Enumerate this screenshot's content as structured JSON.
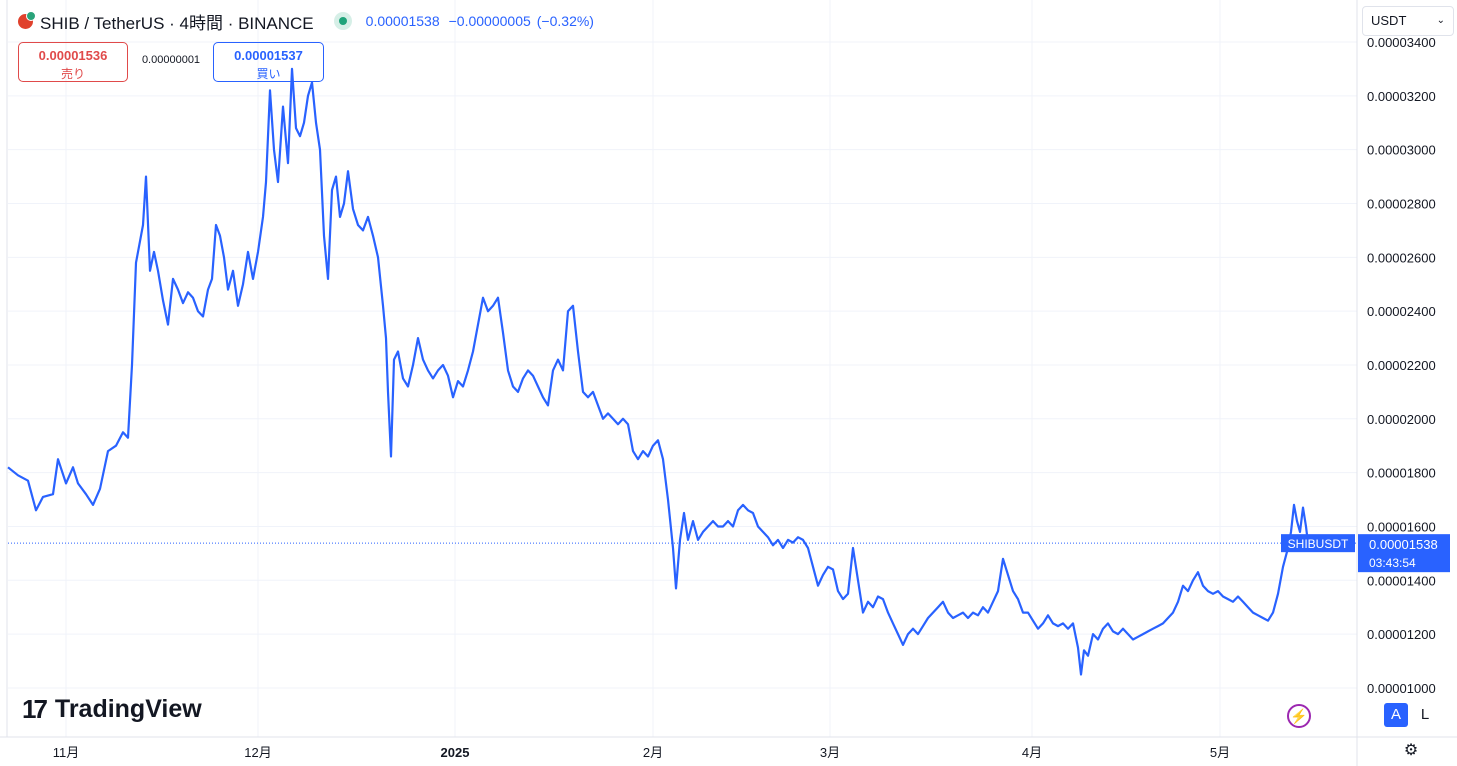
{
  "header": {
    "title": "SHIB / TetherUS · 4時間 · BINANCE",
    "last": "0.00001538",
    "change": "−0.00000005",
    "change_pct": "(−0.32%)"
  },
  "trade": {
    "sell_price": "0.00001536",
    "sell_label": "売り",
    "spread": "0.00000001",
    "buy_price": "0.00001537",
    "buy_label": "買い"
  },
  "currency_select": "USDT",
  "tag": {
    "symbol": "SHIBUSDT",
    "price": "0.00001538",
    "countdown": "03:43:54"
  },
  "brand": "TradingView",
  "controls": {
    "auto": "A",
    "log": "L"
  },
  "icons": {
    "settings": "gear-icon",
    "lightning": "lightning-icon",
    "logo": "shib-logo-icon"
  },
  "colors": {
    "line": "#2962ff",
    "tag": "#2962ff",
    "grid": "#f0f3fa",
    "sell": "#e04a4a",
    "buy": "#2962ff"
  },
  "chart_data": {
    "type": "line",
    "x_labels": [
      "11月",
      "12月",
      "2025",
      "2月",
      "3月",
      "4月",
      "5月"
    ],
    "y_ticks": [
      "0.00001000",
      "0.00001200",
      "0.00001400",
      "0.00001600",
      "0.00001800",
      "0.00002000",
      "0.00002200",
      "0.00002400",
      "0.00002600",
      "0.00002800",
      "0.00003000",
      "0.00003200",
      "0.00003400"
    ],
    "ylim": [
      9.85e-06,
      3.4e-05
    ],
    "grid": true,
    "last_value": 1.538e-05,
    "series": [
      {
        "values": [
          [
            0,
            1.82
          ],
          [
            10,
            1.79
          ],
          [
            20,
            1.77
          ],
          [
            28,
            1.66
          ],
          [
            35,
            1.71
          ],
          [
            45,
            1.72
          ],
          [
            50,
            1.85
          ],
          [
            58,
            1.76
          ],
          [
            65,
            1.82
          ],
          [
            70,
            1.76
          ],
          [
            78,
            1.72
          ],
          [
            85,
            1.68
          ],
          [
            92,
            1.74
          ],
          [
            100,
            1.88
          ],
          [
            108,
            1.9
          ],
          [
            115,
            1.95
          ],
          [
            120,
            1.93
          ],
          [
            124,
            2.2
          ],
          [
            128,
            2.58
          ],
          [
            132,
            2.66
          ],
          [
            135,
            2.72
          ],
          [
            138,
            2.9
          ],
          [
            142,
            2.55
          ],
          [
            146,
            2.62
          ],
          [
            150,
            2.55
          ],
          [
            155,
            2.44
          ],
          [
            160,
            2.35
          ],
          [
            165,
            2.52
          ],
          [
            170,
            2.48
          ],
          [
            175,
            2.43
          ],
          [
            180,
            2.47
          ],
          [
            185,
            2.45
          ],
          [
            190,
            2.4
          ],
          [
            195,
            2.38
          ],
          [
            200,
            2.48
          ],
          [
            204,
            2.52
          ],
          [
            208,
            2.72
          ],
          [
            212,
            2.68
          ],
          [
            216,
            2.6
          ],
          [
            220,
            2.48
          ],
          [
            225,
            2.55
          ],
          [
            230,
            2.42
          ],
          [
            235,
            2.5
          ],
          [
            240,
            2.62
          ],
          [
            245,
            2.52
          ],
          [
            250,
            2.62
          ],
          [
            255,
            2.75
          ],
          [
            258,
            2.88
          ],
          [
            262,
            3.22
          ],
          [
            266,
            3.0
          ],
          [
            270,
            2.88
          ],
          [
            275,
            3.16
          ],
          [
            280,
            2.95
          ],
          [
            284,
            3.3
          ],
          [
            288,
            3.08
          ],
          [
            292,
            3.05
          ],
          [
            296,
            3.1
          ],
          [
            300,
            3.2
          ],
          [
            304,
            3.25
          ],
          [
            308,
            3.1
          ],
          [
            312,
            3.0
          ],
          [
            316,
            2.68
          ],
          [
            320,
            2.52
          ],
          [
            324,
            2.85
          ],
          [
            328,
            2.9
          ],
          [
            332,
            2.75
          ],
          [
            336,
            2.8
          ],
          [
            340,
            2.92
          ],
          [
            345,
            2.78
          ],
          [
            350,
            2.72
          ],
          [
            355,
            2.7
          ],
          [
            360,
            2.75
          ],
          [
            365,
            2.68
          ],
          [
            370,
            2.6
          ],
          [
            375,
            2.42
          ],
          [
            378,
            2.3
          ],
          [
            380,
            2.1
          ],
          [
            383,
            1.86
          ],
          [
            386,
            2.22
          ],
          [
            390,
            2.25
          ],
          [
            395,
            2.15
          ],
          [
            400,
            2.12
          ],
          [
            405,
            2.2
          ],
          [
            410,
            2.3
          ],
          [
            415,
            2.22
          ],
          [
            420,
            2.18
          ],
          [
            425,
            2.15
          ],
          [
            430,
            2.18
          ],
          [
            435,
            2.2
          ],
          [
            440,
            2.16
          ],
          [
            445,
            2.08
          ],
          [
            450,
            2.14
          ],
          [
            455,
            2.12
          ],
          [
            460,
            2.18
          ],
          [
            465,
            2.25
          ],
          [
            470,
            2.35
          ],
          [
            475,
            2.45
          ],
          [
            480,
            2.4
          ],
          [
            485,
            2.42
          ],
          [
            490,
            2.45
          ],
          [
            495,
            2.32
          ],
          [
            500,
            2.18
          ],
          [
            505,
            2.12
          ],
          [
            510,
            2.1
          ],
          [
            515,
            2.15
          ],
          [
            520,
            2.18
          ],
          [
            525,
            2.16
          ],
          [
            530,
            2.12
          ],
          [
            535,
            2.08
          ],
          [
            540,
            2.05
          ],
          [
            545,
            2.18
          ],
          [
            550,
            2.22
          ],
          [
            555,
            2.18
          ],
          [
            560,
            2.4
          ],
          [
            565,
            2.42
          ],
          [
            570,
            2.25
          ],
          [
            575,
            2.1
          ],
          [
            580,
            2.08
          ],
          [
            585,
            2.1
          ],
          [
            590,
            2.05
          ],
          [
            595,
            2.0
          ],
          [
            600,
            2.02
          ],
          [
            605,
            2.0
          ],
          [
            610,
            1.98
          ],
          [
            615,
            2.0
          ],
          [
            620,
            1.98
          ],
          [
            625,
            1.88
          ],
          [
            630,
            1.85
          ],
          [
            635,
            1.88
          ],
          [
            640,
            1.86
          ],
          [
            645,
            1.9
          ],
          [
            650,
            1.92
          ],
          [
            655,
            1.85
          ],
          [
            660,
            1.7
          ],
          [
            665,
            1.52
          ],
          [
            668,
            1.37
          ],
          [
            672,
            1.55
          ],
          [
            676,
            1.65
          ],
          [
            680,
            1.55
          ],
          [
            685,
            1.62
          ],
          [
            690,
            1.55
          ],
          [
            695,
            1.58
          ],
          [
            700,
            1.6
          ],
          [
            705,
            1.62
          ],
          [
            710,
            1.6
          ],
          [
            715,
            1.6
          ],
          [
            720,
            1.62
          ],
          [
            725,
            1.6
          ],
          [
            730,
            1.66
          ],
          [
            735,
            1.68
          ],
          [
            740,
            1.66
          ],
          [
            745,
            1.65
          ],
          [
            750,
            1.6
          ],
          [
            755,
            1.58
          ],
          [
            760,
            1.56
          ],
          [
            765,
            1.53
          ],
          [
            770,
            1.55
          ],
          [
            775,
            1.52
          ],
          [
            780,
            1.55
          ],
          [
            785,
            1.54
          ],
          [
            790,
            1.56
          ],
          [
            795,
            1.55
          ],
          [
            800,
            1.52
          ],
          [
            805,
            1.45
          ],
          [
            810,
            1.38
          ],
          [
            815,
            1.42
          ],
          [
            820,
            1.45
          ],
          [
            825,
            1.44
          ],
          [
            830,
            1.36
          ],
          [
            835,
            1.33
          ],
          [
            840,
            1.35
          ],
          [
            845,
            1.52
          ],
          [
            850,
            1.4
          ],
          [
            855,
            1.28
          ],
          [
            860,
            1.32
          ],
          [
            865,
            1.3
          ],
          [
            870,
            1.34
          ],
          [
            875,
            1.33
          ],
          [
            880,
            1.28
          ],
          [
            885,
            1.24
          ],
          [
            890,
            1.2
          ],
          [
            895,
            1.16
          ],
          [
            900,
            1.2
          ],
          [
            905,
            1.22
          ],
          [
            910,
            1.2
          ],
          [
            915,
            1.23
          ],
          [
            920,
            1.26
          ],
          [
            925,
            1.28
          ],
          [
            930,
            1.3
          ],
          [
            935,
            1.32
          ],
          [
            940,
            1.28
          ],
          [
            945,
            1.26
          ],
          [
            950,
            1.27
          ],
          [
            955,
            1.28
          ],
          [
            960,
            1.26
          ],
          [
            965,
            1.28
          ],
          [
            970,
            1.27
          ],
          [
            975,
            1.3
          ],
          [
            980,
            1.28
          ],
          [
            985,
            1.32
          ],
          [
            990,
            1.36
          ],
          [
            995,
            1.48
          ],
          [
            1000,
            1.42
          ],
          [
            1005,
            1.36
          ],
          [
            1010,
            1.33
          ],
          [
            1015,
            1.28
          ],
          [
            1020,
            1.28
          ],
          [
            1025,
            1.25
          ],
          [
            1030,
            1.22
          ],
          [
            1035,
            1.24
          ],
          [
            1040,
            1.27
          ],
          [
            1045,
            1.24
          ],
          [
            1050,
            1.23
          ],
          [
            1055,
            1.24
          ],
          [
            1060,
            1.22
          ],
          [
            1065,
            1.24
          ],
          [
            1070,
            1.15
          ],
          [
            1073,
            1.05
          ],
          [
            1076,
            1.14
          ],
          [
            1080,
            1.12
          ],
          [
            1085,
            1.2
          ],
          [
            1090,
            1.18
          ],
          [
            1095,
            1.22
          ],
          [
            1100,
            1.24
          ],
          [
            1105,
            1.21
          ],
          [
            1110,
            1.2
          ],
          [
            1115,
            1.22
          ],
          [
            1120,
            1.2
          ],
          [
            1125,
            1.18
          ],
          [
            1130,
            1.19
          ],
          [
            1135,
            1.2
          ],
          [
            1140,
            1.21
          ],
          [
            1145,
            1.22
          ],
          [
            1150,
            1.23
          ],
          [
            1155,
            1.24
          ],
          [
            1160,
            1.26
          ],
          [
            1165,
            1.28
          ],
          [
            1170,
            1.32
          ],
          [
            1175,
            1.38
          ],
          [
            1180,
            1.36
          ],
          [
            1185,
            1.4
          ],
          [
            1190,
            1.43
          ],
          [
            1195,
            1.38
          ],
          [
            1200,
            1.36
          ],
          [
            1205,
            1.35
          ],
          [
            1210,
            1.36
          ],
          [
            1215,
            1.34
          ],
          [
            1220,
            1.33
          ],
          [
            1225,
            1.32
          ],
          [
            1230,
            1.34
          ],
          [
            1235,
            1.32
          ],
          [
            1240,
            1.3
          ],
          [
            1245,
            1.28
          ],
          [
            1250,
            1.27
          ],
          [
            1255,
            1.26
          ],
          [
            1260,
            1.25
          ],
          [
            1265,
            1.28
          ],
          [
            1270,
            1.35
          ],
          [
            1275,
            1.45
          ],
          [
            1280,
            1.52
          ],
          [
            1283,
            1.58
          ],
          [
            1286,
            1.68
          ],
          [
            1289,
            1.62
          ],
          [
            1292,
            1.58
          ],
          [
            1295,
            1.67
          ],
          [
            1298,
            1.6
          ],
          [
            1300,
            1.538
          ]
        ]
      }
    ]
  }
}
